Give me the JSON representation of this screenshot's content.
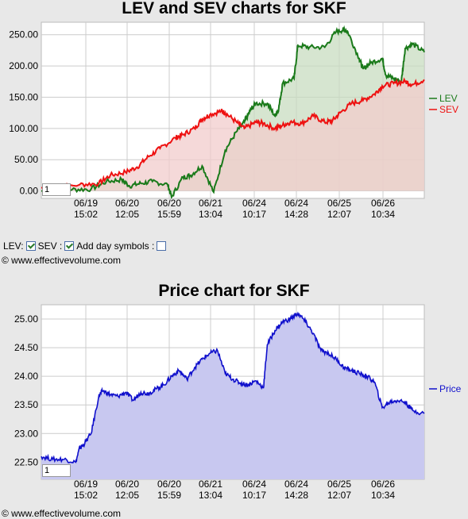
{
  "charts": {
    "lev_title": "LEV and SEV charts for SKF",
    "price_title": "Price chart for SKF",
    "copyright": "© www.effectivevolume.com",
    "zoom_value": "1"
  },
  "controls": {
    "lev_label": "LEV:",
    "sev_label": "SEV :",
    "day_symbols_label": "Add day symbols :",
    "lev_checked": true,
    "sev_checked": true,
    "day_symbols_checked": false
  },
  "chart_data": [
    {
      "type": "area",
      "title": "LEV and SEV charts for SKF",
      "x_ticks": [
        [
          "06/19",
          "15:02"
        ],
        [
          "06/20",
          "12:05"
        ],
        [
          "06/20",
          "15:59"
        ],
        [
          "06/21",
          "13:04"
        ],
        [
          "06/24",
          "10:17"
        ],
        [
          "06/24",
          "14:28"
        ],
        [
          "06/25",
          "12:07"
        ],
        [
          "06/26",
          "10:34"
        ]
      ],
      "y_ticks": [
        "0.00",
        "50.00",
        "100.00",
        "150.00",
        "200.00",
        "250.00"
      ],
      "ylim": [
        -12,
        270
      ],
      "grid": true,
      "legend": "right",
      "series": [
        {
          "name": "LEV",
          "color": "#1a7a1a",
          "fill": "#c8dcc0",
          "x": [
            0,
            0.08,
            0.13,
            0.17,
            0.21,
            0.23,
            0.26,
            0.29,
            0.33,
            0.34,
            0.37,
            0.39,
            0.42,
            0.45,
            0.48,
            0.51,
            0.53,
            0.545,
            0.56,
            0.59,
            0.61,
            0.62,
            0.63,
            0.66,
            0.67,
            0.7,
            0.74,
            0.77,
            0.79,
            0.8,
            0.83,
            0.84,
            0.86,
            0.89,
            0.9,
            0.92,
            0.94,
            0.95,
            0.97,
            1.0
          ],
          "y": [
            0,
            2,
            3,
            15,
            18,
            8,
            12,
            15,
            10,
            -10,
            22,
            25,
            40,
            -2,
            65,
            95,
            110,
            128,
            140,
            140,
            120,
            132,
            172,
            180,
            233,
            230,
            230,
            255,
            258,
            255,
            212,
            195,
            205,
            212,
            185,
            180,
            175,
            228,
            235,
            222
          ]
        },
        {
          "name": "SEV",
          "color": "#ee1111",
          "fill": "#f2cccc",
          "x": [
            0,
            0.1,
            0.15,
            0.18,
            0.22,
            0.25,
            0.28,
            0.31,
            0.35,
            0.37,
            0.4,
            0.42,
            0.44,
            0.47,
            0.48,
            0.51,
            0.53,
            0.56,
            0.58,
            0.61,
            0.63,
            0.65,
            0.68,
            0.71,
            0.74,
            0.76,
            0.78,
            0.81,
            0.84,
            0.87,
            0.89,
            0.92,
            0.95,
            0.97,
            1.0
          ],
          "y": [
            5,
            10,
            12,
            25,
            30,
            38,
            55,
            68,
            85,
            90,
            100,
            115,
            122,
            128,
            125,
            110,
            100,
            110,
            108,
            100,
            105,
            110,
            108,
            120,
            110,
            112,
            125,
            140,
            145,
            155,
            168,
            172,
            175,
            170,
            178
          ]
        }
      ]
    },
    {
      "type": "area",
      "title": "Price chart for SKF",
      "x_ticks": [
        [
          "06/19",
          "15:02"
        ],
        [
          "06/20",
          "12:05"
        ],
        [
          "06/20",
          "15:59"
        ],
        [
          "06/21",
          "13:04"
        ],
        [
          "06/24",
          "10:17"
        ],
        [
          "06/24",
          "14:28"
        ],
        [
          "06/25",
          "12:07"
        ],
        [
          "06/26",
          "10:34"
        ]
      ],
      "y_ticks": [
        "22.50",
        "23.00",
        "23.50",
        "24.00",
        "24.50",
        "25.00"
      ],
      "ylim": [
        22.2,
        25.25
      ],
      "grid": true,
      "legend": "right",
      "series": [
        {
          "name": "Price",
          "color": "#1010cc",
          "fill": "#c8c8f0",
          "x": [
            0,
            0.03,
            0.06,
            0.09,
            0.1,
            0.11,
            0.13,
            0.15,
            0.16,
            0.18,
            0.2,
            0.22,
            0.24,
            0.26,
            0.28,
            0.3,
            0.32,
            0.34,
            0.36,
            0.38,
            0.4,
            0.42,
            0.44,
            0.46,
            0.48,
            0.5,
            0.52,
            0.54,
            0.56,
            0.58,
            0.59,
            0.61,
            0.63,
            0.65,
            0.67,
            0.69,
            0.71,
            0.73,
            0.75,
            0.77,
            0.79,
            0.81,
            0.83,
            0.85,
            0.87,
            0.89,
            0.91,
            0.93,
            0.95,
            0.97,
            1.0
          ],
          "y": [
            22.6,
            22.55,
            22.55,
            22.5,
            22.75,
            22.8,
            23.0,
            23.65,
            23.75,
            23.68,
            23.65,
            23.72,
            23.58,
            23.72,
            23.7,
            23.78,
            23.85,
            24.0,
            24.1,
            23.95,
            24.15,
            24.3,
            24.4,
            24.45,
            24.05,
            23.95,
            23.88,
            23.85,
            23.92,
            23.8,
            24.55,
            24.8,
            24.95,
            25.0,
            25.1,
            24.95,
            24.75,
            24.45,
            24.4,
            24.3,
            24.15,
            24.1,
            24.05,
            24.0,
            23.9,
            23.45,
            23.55,
            23.58,
            23.55,
            23.4,
            23.35
          ]
        }
      ]
    }
  ]
}
